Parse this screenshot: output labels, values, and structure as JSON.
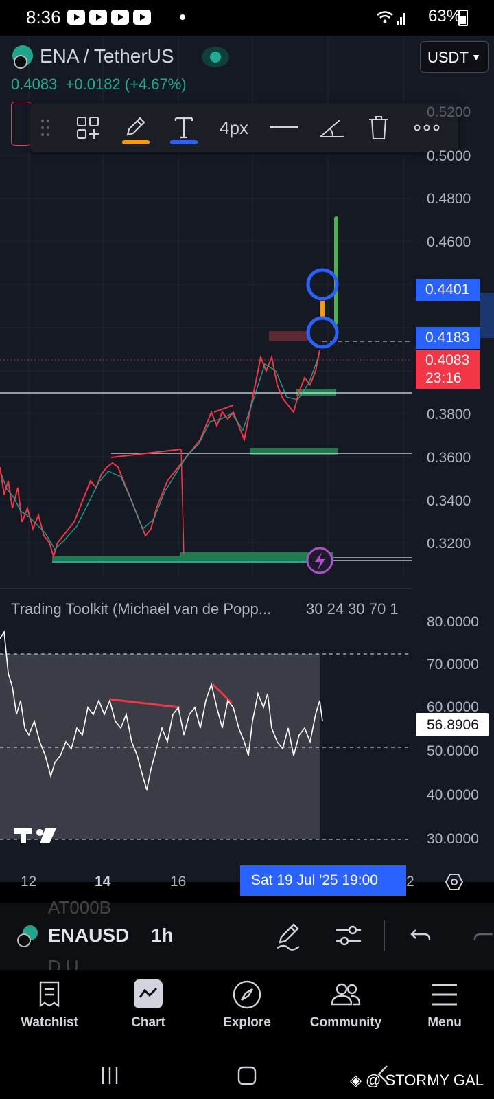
{
  "status_bar": {
    "time": "8:36",
    "battery": "63%"
  },
  "header": {
    "symbol": "ENA / TetherUS",
    "price": "0.4083",
    "change": "+0.0182 (+4.67%)",
    "currency": "USDT"
  },
  "toolbar": {
    "stroke_width": "4px",
    "pencil_color": "#ff9800",
    "text_color": "#2962ff"
  },
  "price_axis": {
    "labels": [
      "0.5200",
      "0.5000",
      "0.4800",
      "0.4600",
      "0.3800",
      "0.3600",
      "0.3400",
      "0.3200"
    ],
    "upper_target": "0.4401",
    "lower_target": "0.4183",
    "last_price": "0.4083",
    "countdown": "23:16"
  },
  "oscillator": {
    "title": "Trading Toolkit (Michaël van de Popp...",
    "params": "30 24 30 70 1",
    "axis_labels": [
      "80.0000",
      "70.0000",
      "60.0000",
      "50.0000",
      "40.0000",
      "30.0000"
    ],
    "current_value": "56.8906"
  },
  "time_axis": {
    "labels": [
      "12",
      "14",
      "16",
      "2"
    ],
    "cursor": "Sat 19 Jul '25   19:00"
  },
  "symbol_bar": {
    "ghost_top": "AT000B",
    "name": "ENAUSD",
    "interval": "1h",
    "ghost_bottom": "D.U"
  },
  "nav": {
    "items": [
      {
        "label": "Watchlist"
      },
      {
        "label": "Chart"
      },
      {
        "label": "Explore"
      },
      {
        "label": "Community"
      },
      {
        "label": "Menu"
      }
    ]
  },
  "watermark": "@ STORMY GAL"
}
